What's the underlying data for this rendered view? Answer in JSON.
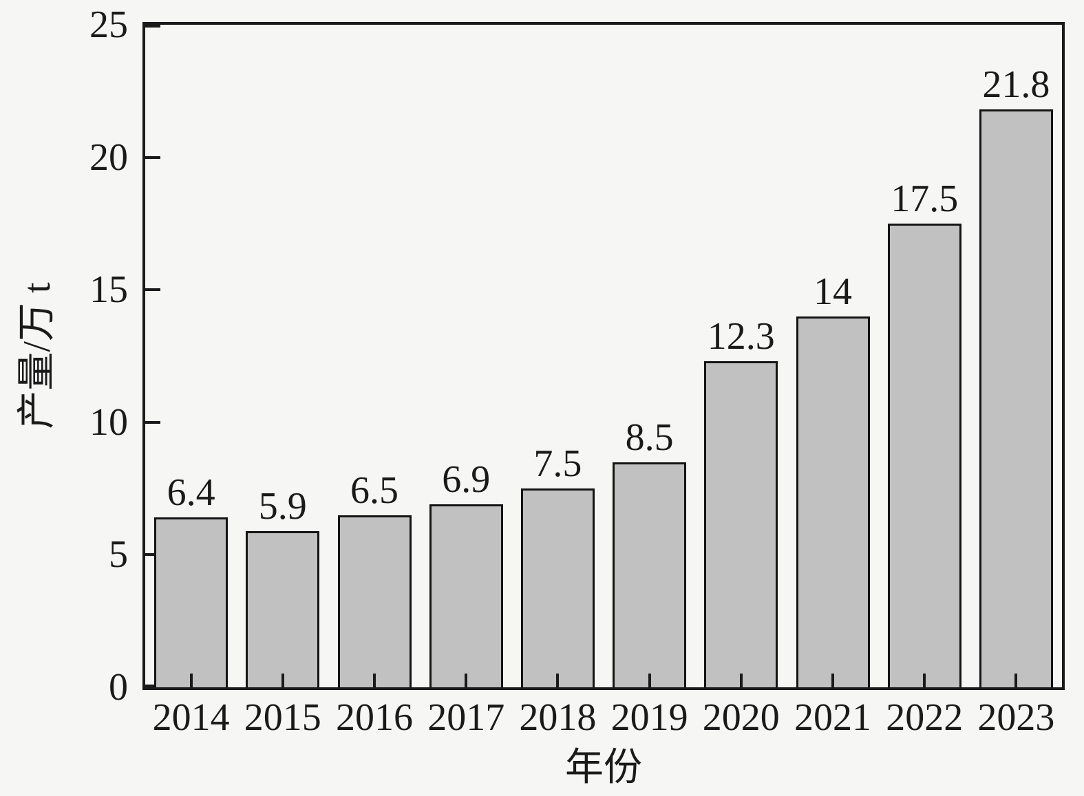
{
  "figure": {
    "background_color": "#f6f6f4",
    "axis_color": "#1a1a1a",
    "text_color": "#1a1a1a"
  },
  "chart_data": {
    "type": "bar",
    "title": "",
    "xlabel": "年份",
    "ylabel": "产量/万 t",
    "categories": [
      "2014",
      "2015",
      "2016",
      "2017",
      "2018",
      "2019",
      "2020",
      "2021",
      "2022",
      "2023"
    ],
    "values": [
      6.4,
      5.9,
      6.5,
      6.9,
      7.5,
      8.5,
      12.3,
      14,
      17.5,
      21.8
    ],
    "value_labels": [
      "6.4",
      "5.9",
      "6.5",
      "6.9",
      "7.5",
      "8.5",
      "12.3",
      "14",
      "17.5",
      "21.8"
    ],
    "ylim": [
      0,
      25
    ],
    "yticks": [
      0,
      5,
      10,
      15,
      20,
      25
    ],
    "grid": false,
    "legend": null,
    "bar_color": "#c1c1c1",
    "bar_border_color": "#141414"
  }
}
